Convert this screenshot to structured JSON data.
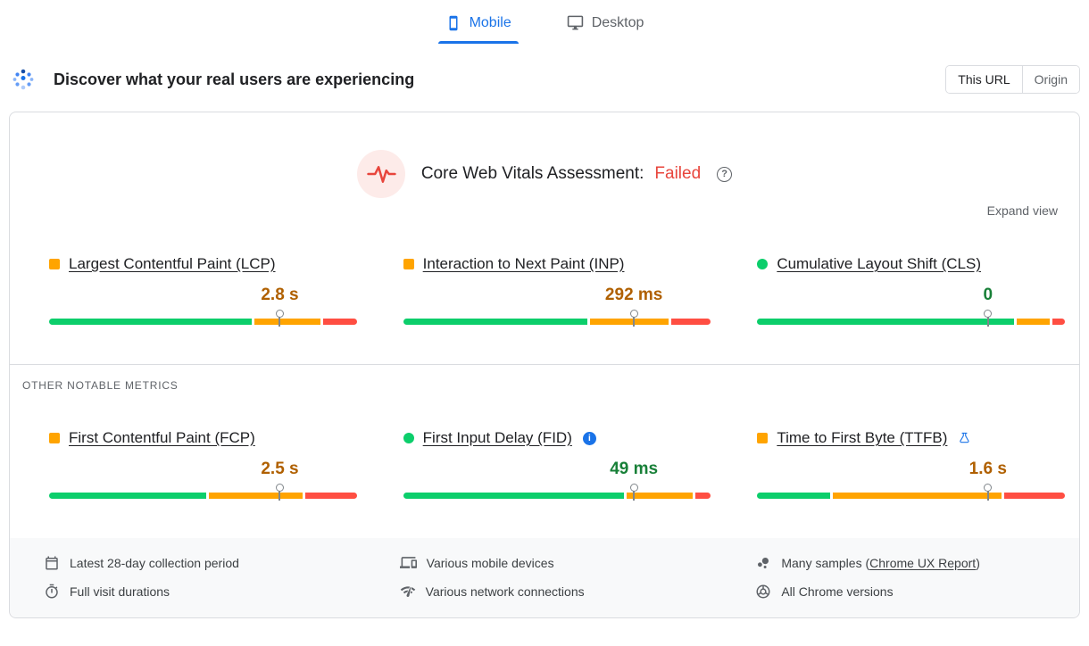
{
  "tabs": {
    "mobile_label": "Mobile",
    "desktop_label": "Desktop"
  },
  "header": {
    "title": "Discover what your real users are experiencing",
    "this_url_label": "This URL",
    "origin_label": "Origin"
  },
  "assessment": {
    "title": "Core Web Vitals Assessment:",
    "result": "Failed",
    "expand_label": "Expand view"
  },
  "other_metrics_label": "OTHER NOTABLE METRICS",
  "metrics": {
    "core": [
      {
        "label": "Largest Contentful Paint (LCP)",
        "value": "2.8 s",
        "rating": "needs-improvement",
        "distribution": [
          67,
          22,
          11
        ],
        "p75_marker": 75
      },
      {
        "label": "Interaction to Next Paint (INP)",
        "value": "292 ms",
        "rating": "needs-improvement",
        "distribution": [
          61,
          26,
          13
        ],
        "p75_marker": 75
      },
      {
        "label": "Cumulative Layout Shift (CLS)",
        "value": "0",
        "rating": "good",
        "distribution": [
          85,
          11,
          4
        ],
        "p75_marker": 75
      }
    ],
    "other": [
      {
        "label": "First Contentful Paint (FCP)",
        "value": "2.5 s",
        "rating": "needs-improvement",
        "distribution": [
          52,
          31,
          17
        ],
        "p75_marker": 75
      },
      {
        "label": "First Input Delay (FID)",
        "value": "49 ms",
        "rating": "good",
        "distribution": [
          73,
          22,
          5
        ],
        "p75_marker": 75
      },
      {
        "label": "Time to First Byte (TTFB)",
        "value": "1.6 s",
        "rating": "needs-improvement",
        "distribution": [
          24,
          56,
          20
        ],
        "p75_marker": 75
      }
    ]
  },
  "footer": {
    "collection_period": "Latest 28-day collection period",
    "visit_durations": "Full visit durations",
    "devices": "Various mobile devices",
    "network": "Various network connections",
    "samples_prefix": "Many samples (",
    "samples_link": "Chrome UX Report",
    "samples_suffix": ")",
    "chrome_versions": "All Chrome versions"
  },
  "icons": {
    "help_glyph": "?",
    "info_glyph": "i"
  },
  "colors": {
    "good": "#0cce6b",
    "needs_improvement": "#ffa400",
    "poor": "#ff4e42",
    "accent_blue": "#1a73e8",
    "failed_red": "#e8453c",
    "value_good": "#188038",
    "value_ni": "#b06000"
  }
}
